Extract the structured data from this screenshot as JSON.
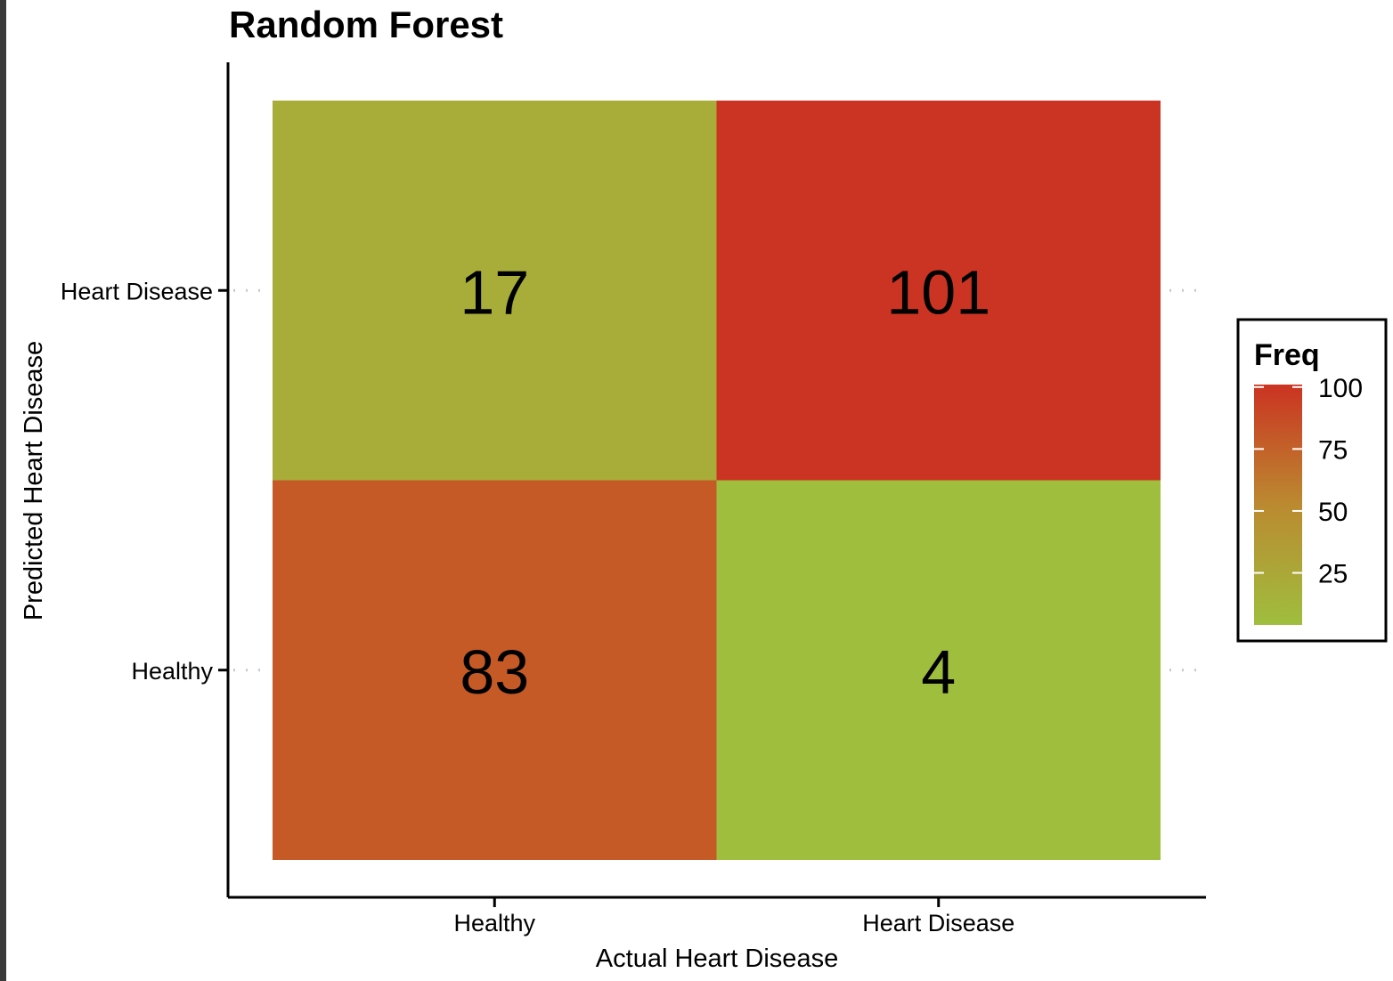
{
  "chart_data": {
    "type": "heatmap",
    "title": "Random Forest",
    "xlabel": "Actual Heart Disease",
    "ylabel": "Predicted Heart Disease",
    "x_categories": [
      "Healthy",
      "Heart Disease"
    ],
    "y_categories": [
      "Healthy",
      "Heart Disease"
    ],
    "cells": [
      {
        "x": "Healthy",
        "y": "Heart Disease",
        "value": 17,
        "label": "17"
      },
      {
        "x": "Heart Disease",
        "y": "Heart Disease",
        "value": 101,
        "label": "101"
      },
      {
        "x": "Healthy",
        "y": "Healthy",
        "value": 83,
        "label": "83"
      },
      {
        "x": "Heart Disease",
        "y": "Healthy",
        "value": 4,
        "label": "4"
      }
    ],
    "legend": {
      "title": "Freq",
      "position": "right",
      "ticks": [
        {
          "value": 100,
          "label": "100"
        },
        {
          "value": 75,
          "label": "75"
        },
        {
          "value": 50,
          "label": "50"
        },
        {
          "value": 25,
          "label": "25"
        }
      ],
      "range": [
        4,
        101
      ]
    },
    "colors": {
      "low": "#9fbe3e",
      "high": "#cb3322"
    },
    "grid": false
  }
}
